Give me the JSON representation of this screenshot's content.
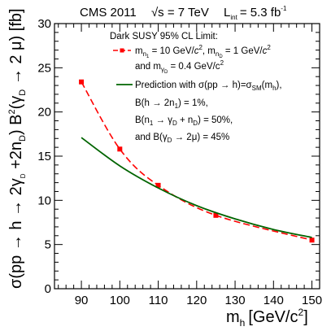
{
  "chart_data": {
    "type": "line",
    "header": {
      "experiment": "CMS 2011",
      "energy": "√s = 7 TeV",
      "lumi": "L",
      "lumi_sub": "int",
      "lumi_value": "= 5.3 fb",
      "lumi_sup": "-1"
    },
    "x_axis": {
      "label_main": "m",
      "label_sub": "h",
      "label_unit": "[GeV/c",
      "label_sup": "2",
      "label_close": "]",
      "range": [
        83,
        152
      ],
      "ticks": [
        90,
        100,
        110,
        120,
        130,
        140,
        150
      ],
      "tick_labels": [
        "90",
        "100",
        "110",
        "120",
        "130",
        "140",
        "150"
      ]
    },
    "y_axis": {
      "label_parts": [
        "σ(pp → h → 2γ",
        "D",
        " +2n",
        "D",
        ") B",
        "2",
        "(γ",
        "D",
        " → 2 μ) [fb]"
      ],
      "range": [
        0,
        30
      ],
      "ticks": [
        0,
        5,
        10,
        15,
        20,
        25,
        30
      ],
      "tick_labels": [
        "0",
        "5",
        "10",
        "15",
        "20",
        "25",
        "30"
      ]
    },
    "series": [
      {
        "style": "dashed-with-markers",
        "color": "#ff0000",
        "x": [
          90,
          100,
          110,
          125,
          150
        ],
        "y": [
          23.4,
          15.8,
          11.7,
          8.3,
          5.5
        ]
      },
      {
        "style": "solid",
        "color": "#006400",
        "x": [
          90,
          100,
          110,
          120,
          130,
          140,
          150
        ],
        "y": [
          17.1,
          13.9,
          11.4,
          9.4,
          7.9,
          6.7,
          5.8
        ]
      }
    ],
    "legend": {
      "header": "Dark SUSY 95% CL Limit:",
      "entry1_line1": {
        "m1": "m",
        "m1_sub": "n",
        "m1_subsub": "1",
        "v1": " = 10 GeV/",
        "v1_c": "c",
        "v1_sup": "2",
        "v1_comma": ", m",
        "m2_sub": "n",
        "m2_subsub": "D",
        "v2": " = 1 GeV/",
        "v2_c": "c",
        "v2_sup": "2"
      },
      "entry1_line2": {
        "and": "and m",
        "sub": "γ",
        "subsub": "D",
        "v": " = 0.4 GeV/c",
        "sup": "2"
      },
      "entry2_line1": {
        "text": "Prediction with σ(pp → h)=σ",
        "sub": "SM",
        "tail": "(m",
        "tail_sub": "h",
        "close": "),"
      },
      "entry2_line2": {
        "text": "B(h → 2n",
        "sub": "1",
        "close": ") = 1%,"
      },
      "entry2_line3": {
        "text": "B(n",
        "sub": "1",
        "mid": " → γ",
        "sub2": "D",
        "mid2": " + n",
        "sub3": "D",
        "close": ") = 50%,"
      },
      "entry2_line4": {
        "text": "and B(γ",
        "sub": "D",
        "close": " → 2μ) = 45%"
      }
    }
  }
}
